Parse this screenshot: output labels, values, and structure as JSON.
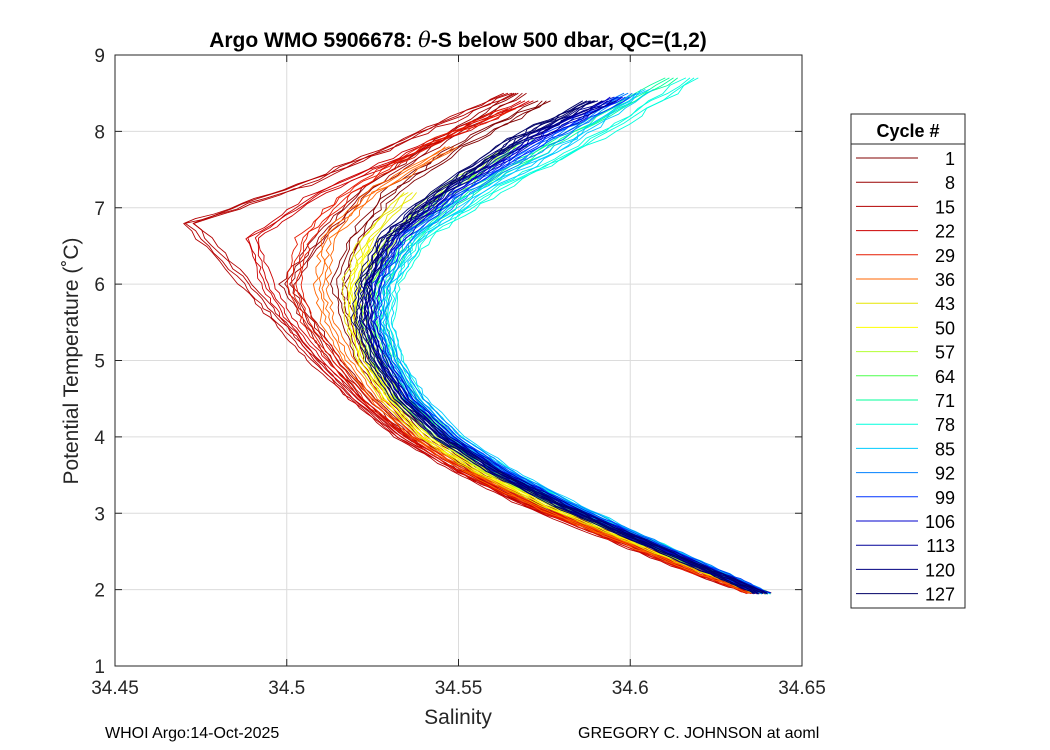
{
  "chart_data": {
    "type": "line",
    "title_prefix": "Argo WMO 5906678: ",
    "title_theta": "θ",
    "title_suffix": "-S below 500 dbar,  QC=(1,2)",
    "xlabel": "Salinity",
    "ylabel": "Potential Temperature (˚C)",
    "xlim": [
      34.45,
      34.65
    ],
    "ylim": [
      1,
      9
    ],
    "x_ticks": [
      34.45,
      34.5,
      34.55,
      34.6,
      34.65
    ],
    "x_tick_labels": [
      "34.45",
      "34.5",
      "34.55",
      "34.6",
      "34.65"
    ],
    "y_ticks": [
      1,
      2,
      3,
      4,
      5,
      6,
      7,
      8,
      9
    ],
    "y_tick_labels": [
      "1",
      "2",
      "3",
      "4",
      "5",
      "6",
      "7",
      "8",
      "9"
    ],
    "grid": true,
    "legend_title": "Cycle #",
    "legend_position": "right",
    "series": [
      {
        "name": "1",
        "color": "#800000",
        "salinity": [
          34.639,
          34.625,
          34.6,
          34.575,
          34.555,
          34.54,
          34.53,
          34.522,
          34.518,
          34.515,
          34.52,
          34.53,
          34.55,
          34.575
        ],
        "theta": [
          1.95,
          2.2,
          2.65,
          3.1,
          3.55,
          4.0,
          4.5,
          5.0,
          5.5,
          6.0,
          6.6,
          7.2,
          7.8,
          8.4
        ]
      },
      {
        "name": "8",
        "color": "#990000",
        "salinity": [
          34.637,
          34.622,
          34.597,
          34.572,
          34.552,
          34.536,
          34.524,
          34.514,
          34.507,
          34.5,
          34.51,
          34.522,
          34.542,
          34.568
        ],
        "theta": [
          1.95,
          2.2,
          2.65,
          3.1,
          3.55,
          4.0,
          4.5,
          5.0,
          5.5,
          6.0,
          6.6,
          7.2,
          7.8,
          8.5
        ]
      },
      {
        "name": "15",
        "color": "#b30000",
        "salinity": [
          34.636,
          34.62,
          34.595,
          34.57,
          34.55,
          34.533,
          34.52,
          34.508,
          34.498,
          34.488,
          34.472,
          34.505,
          34.535,
          34.565
        ],
        "theta": [
          1.95,
          2.2,
          2.65,
          3.1,
          3.55,
          4.0,
          4.5,
          5.0,
          5.5,
          6.0,
          6.8,
          7.3,
          7.9,
          8.5
        ]
      },
      {
        "name": "22",
        "color": "#cc0000",
        "salinity": [
          34.636,
          34.621,
          34.596,
          34.571,
          34.551,
          34.534,
          34.52,
          34.51,
          34.501,
          34.494,
          34.49,
          34.51,
          34.54,
          34.57
        ],
        "theta": [
          1.95,
          2.2,
          2.65,
          3.1,
          3.55,
          4.0,
          4.5,
          5.0,
          5.5,
          6.0,
          6.6,
          7.2,
          7.8,
          8.4
        ]
      },
      {
        "name": "29",
        "color": "#e61a00",
        "salinity": [
          34.636,
          34.621,
          34.596,
          34.572,
          34.552,
          34.536,
          34.523,
          34.514,
          34.506,
          34.502,
          34.505,
          34.518,
          34.54,
          34.565
        ],
        "theta": [
          1.95,
          2.2,
          2.65,
          3.1,
          3.55,
          4.0,
          4.5,
          5.0,
          5.5,
          6.0,
          6.6,
          7.2,
          7.8,
          8.3
        ]
      },
      {
        "name": "36",
        "color": "#ff6600",
        "salinity": [
          34.637,
          34.622,
          34.597,
          34.573,
          34.553,
          34.538,
          34.526,
          34.518,
          34.512,
          34.51,
          34.512,
          34.525,
          34.548
        ],
        "theta": [
          1.95,
          2.2,
          2.65,
          3.1,
          3.55,
          4.0,
          4.5,
          5.0,
          5.5,
          6.0,
          6.6,
          7.2,
          7.8
        ]
      },
      {
        "name": "43",
        "color": "#e6e600",
        "salinity": [
          34.638,
          34.624,
          34.6,
          34.576,
          34.556,
          34.54,
          34.529,
          34.522,
          34.519,
          34.518,
          34.523,
          34.536
        ],
        "theta": [
          1.95,
          2.2,
          2.65,
          3.1,
          3.55,
          4.0,
          4.5,
          5.0,
          5.5,
          6.0,
          6.6,
          7.2
        ]
      },
      {
        "name": "50",
        "color": "#ffff00",
        "salinity": [
          34.639,
          34.625,
          34.601,
          34.577,
          34.557,
          34.541,
          34.53,
          34.523,
          34.52,
          34.52,
          34.526
        ],
        "theta": [
          1.95,
          2.2,
          2.65,
          3.1,
          3.55,
          4.0,
          4.5,
          5.0,
          5.5,
          6.0,
          6.6
        ]
      },
      {
        "name": "57",
        "color": "#b3ff33",
        "salinity": [
          34.639,
          34.626,
          34.602,
          34.579,
          34.559,
          34.544,
          34.532,
          34.525,
          34.522,
          34.523,
          34.53,
          34.545,
          34.565
        ],
        "theta": [
          1.95,
          2.2,
          2.65,
          3.1,
          3.55,
          4.0,
          4.5,
          5.0,
          5.5,
          6.0,
          6.6,
          7.2,
          7.8
        ]
      },
      {
        "name": "64",
        "color": "#4dff4d",
        "salinity": [
          34.639,
          34.626,
          34.603,
          34.58,
          34.56,
          34.545,
          34.534,
          34.527,
          34.524,
          34.525,
          34.532,
          34.548,
          34.57
        ],
        "theta": [
          1.95,
          2.2,
          2.65,
          3.1,
          3.55,
          4.0,
          4.5,
          5.0,
          5.5,
          6.0,
          6.6,
          7.2,
          7.9
        ]
      },
      {
        "name": "71",
        "color": "#00ff99",
        "salinity": [
          34.639,
          34.627,
          34.604,
          34.582,
          34.562,
          34.547,
          34.536,
          34.53,
          34.527,
          34.528,
          34.536,
          34.553,
          34.58,
          34.612
        ],
        "theta": [
          1.95,
          2.2,
          2.65,
          3.1,
          3.55,
          4.0,
          4.5,
          5.0,
          5.5,
          6.0,
          6.6,
          7.2,
          7.9,
          8.7
        ]
      },
      {
        "name": "78",
        "color": "#00ffdd",
        "salinity": [
          34.639,
          34.627,
          34.605,
          34.583,
          34.564,
          34.549,
          34.538,
          34.532,
          34.529,
          34.531,
          34.54,
          34.56,
          34.59,
          34.618
        ],
        "theta": [
          1.95,
          2.2,
          2.65,
          3.1,
          3.55,
          4.0,
          4.5,
          5.0,
          5.5,
          6.0,
          6.6,
          7.2,
          7.9,
          8.7
        ]
      },
      {
        "name": "85",
        "color": "#00ccff",
        "salinity": [
          34.639,
          34.627,
          34.605,
          34.584,
          34.565,
          34.55,
          34.539,
          34.532,
          34.529,
          34.53,
          34.538,
          34.556,
          34.584,
          34.605
        ],
        "theta": [
          1.95,
          2.2,
          2.65,
          3.1,
          3.55,
          4.0,
          4.5,
          5.0,
          5.5,
          6.0,
          6.6,
          7.2,
          7.9,
          8.55
        ]
      },
      {
        "name": "92",
        "color": "#0080ff",
        "salinity": [
          34.639,
          34.627,
          34.605,
          34.583,
          34.564,
          34.549,
          34.538,
          34.531,
          34.527,
          34.528,
          34.535,
          34.552,
          34.578,
          34.6
        ],
        "theta": [
          1.95,
          2.2,
          2.65,
          3.1,
          3.55,
          4.0,
          4.5,
          5.0,
          5.5,
          6.0,
          6.6,
          7.2,
          7.9,
          8.5
        ]
      },
      {
        "name": "99",
        "color": "#0033ff",
        "salinity": [
          34.639,
          34.627,
          34.604,
          34.582,
          34.563,
          34.548,
          34.536,
          34.529,
          34.525,
          34.526,
          34.533,
          34.55,
          34.575,
          34.598
        ],
        "theta": [
          1.95,
          2.2,
          2.65,
          3.1,
          3.55,
          4.0,
          4.5,
          5.0,
          5.5,
          6.0,
          6.6,
          7.2,
          7.9,
          8.45
        ]
      },
      {
        "name": "106",
        "color": "#0000cc",
        "salinity": [
          34.639,
          34.626,
          34.603,
          34.581,
          34.562,
          34.547,
          34.535,
          34.528,
          34.524,
          34.525,
          34.532,
          34.548,
          34.573,
          34.596
        ],
        "theta": [
          1.95,
          2.2,
          2.65,
          3.1,
          3.55,
          4.0,
          4.5,
          5.0,
          5.5,
          6.0,
          6.6,
          7.2,
          7.9,
          8.45
        ]
      },
      {
        "name": "113",
        "color": "#000099",
        "salinity": [
          34.638,
          34.626,
          34.603,
          34.581,
          34.561,
          34.546,
          34.534,
          34.527,
          34.523,
          34.524,
          34.53,
          34.546,
          34.57,
          34.594
        ],
        "theta": [
          1.95,
          2.2,
          2.65,
          3.1,
          3.55,
          4.0,
          4.5,
          5.0,
          5.5,
          6.0,
          6.6,
          7.2,
          7.9,
          8.4
        ]
      },
      {
        "name": "120",
        "color": "#000080",
        "salinity": [
          34.638,
          34.625,
          34.602,
          34.58,
          34.56,
          34.545,
          34.533,
          34.526,
          34.522,
          34.523,
          34.529,
          34.544,
          34.568,
          34.59
        ],
        "theta": [
          1.95,
          2.2,
          2.65,
          3.1,
          3.55,
          4.0,
          4.5,
          5.0,
          5.5,
          6.0,
          6.6,
          7.2,
          7.9,
          8.4
        ]
      },
      {
        "name": "127",
        "color": "#000066",
        "salinity": [
          34.638,
          34.625,
          34.602,
          34.579,
          34.56,
          34.544,
          34.532,
          34.525,
          34.521,
          34.522,
          34.528,
          34.543,
          34.566,
          34.588
        ],
        "theta": [
          1.95,
          2.2,
          2.65,
          3.1,
          3.55,
          4.0,
          4.5,
          5.0,
          5.5,
          6.0,
          6.6,
          7.2,
          7.9,
          8.4
        ]
      }
    ]
  },
  "footer": {
    "left": "WHOI Argo:14-Oct-2025",
    "right": "GREGORY C. JOHNSON at aoml"
  }
}
